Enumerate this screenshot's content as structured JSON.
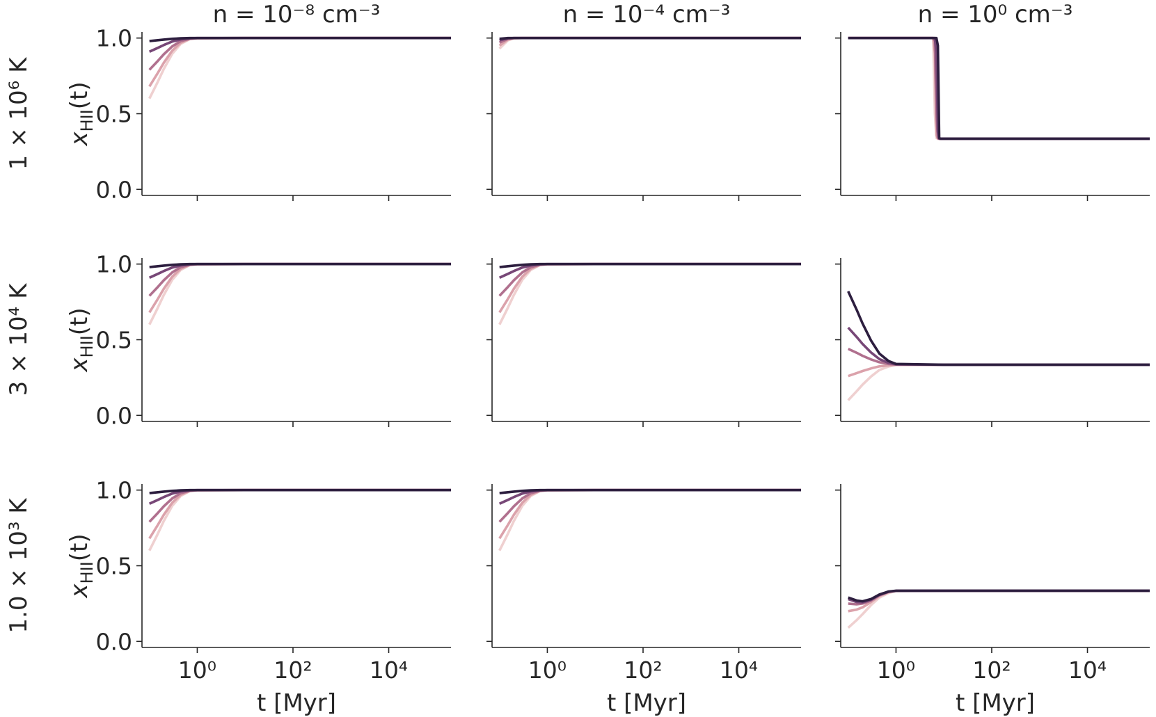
{
  "chart_data": [
    {
      "type": "line",
      "title": "n = 10⁻⁸ cm⁻³",
      "row_label": "1 × 10⁶ K",
      "ylabel": {
        "base": "x",
        "sub": "HII",
        "rest": "(t)"
      },
      "xscale": "log",
      "xlim": [
        0.07,
        200000
      ],
      "ylim": [
        -0.04,
        1.04
      ],
      "xticks": [
        1,
        100,
        10000
      ],
      "yticks": [
        {
          "value": 0,
          "label": "0.0"
        },
        {
          "value": 0.5,
          "label": "0.5"
        },
        {
          "value": 1,
          "label": "1.0"
        }
      ],
      "x": [
        0.1,
        0.15,
        0.2,
        0.3,
        0.45,
        0.7,
        1,
        10,
        200000
      ],
      "series": [
        {
          "color": "#efd0d0",
          "values": [
            0.6,
            0.712,
            0.796,
            0.896,
            0.961,
            0.993,
            0.999,
            1,
            1
          ]
        },
        {
          "color": "#dba2ab",
          "values": [
            0.68,
            0.77,
            0.837,
            0.917,
            0.969,
            0.994,
            0.999,
            1,
            1
          ]
        },
        {
          "color": "#b0708e",
          "values": [
            0.79,
            0.849,
            0.893,
            0.945,
            0.98,
            0.996,
            0.999,
            1,
            1
          ]
        },
        {
          "color": "#774777",
          "values": [
            0.91,
            0.935,
            0.954,
            0.977,
            0.991,
            0.998,
            1,
            1,
            1
          ]
        },
        {
          "color": "#2d1e3f",
          "values": [
            0.98,
            0.986,
            0.99,
            0.995,
            0.998,
            1,
            1,
            1,
            1
          ]
        }
      ]
    },
    {
      "type": "line",
      "title": "n = 10⁻⁴ cm⁻³",
      "xscale": "log",
      "xlim": [
        0.07,
        200000
      ],
      "ylim": [
        -0.04,
        1.04
      ],
      "xticks": [
        1,
        100,
        10000
      ],
      "yticks": [
        0,
        0.5,
        1
      ],
      "x": [
        0.1,
        0.15,
        0.2,
        0.3,
        0.45,
        0.7,
        1,
        10,
        200000
      ],
      "series": [
        {
          "color": "#efd0d0",
          "values": [
            0.93,
            0.985,
            0.998,
            1,
            1,
            1,
            1,
            1,
            1
          ]
        },
        {
          "color": "#dba2ab",
          "values": [
            0.95,
            0.99,
            0.999,
            1,
            1,
            1,
            1,
            1,
            1
          ]
        },
        {
          "color": "#b0708e",
          "values": [
            0.97,
            0.995,
            1,
            1,
            1,
            1,
            1,
            1,
            1
          ]
        },
        {
          "color": "#774777",
          "values": [
            0.985,
            0.998,
            1,
            1,
            1,
            1,
            1,
            1,
            1
          ]
        },
        {
          "color": "#2d1e3f",
          "values": [
            0.995,
            1,
            1,
            1,
            1,
            1,
            1,
            1,
            1
          ]
        }
      ]
    },
    {
      "type": "line",
      "title": "n = 10⁰ cm⁻³",
      "xscale": "log",
      "xlim": [
        0.07,
        200000
      ],
      "ylim": [
        -0.04,
        1.04
      ],
      "xticks": [
        1,
        100,
        10000
      ],
      "yticks": [
        0,
        0.5,
        1
      ],
      "x": [
        0.1,
        1,
        5,
        6,
        6.5,
        7,
        7.5,
        8,
        8.5,
        10,
        100,
        200000
      ],
      "series": [
        {
          "color": "#efd0d0",
          "values": [
            1,
            1,
            1,
            0.999,
            0.5,
            0.34,
            0.335,
            0.335,
            0.335,
            0.335,
            0.335,
            0.335
          ]
        },
        {
          "color": "#dba2ab",
          "values": [
            1,
            1,
            1,
            1,
            0.9,
            0.36,
            0.335,
            0.335,
            0.335,
            0.335,
            0.335,
            0.335
          ]
        },
        {
          "color": "#b0708e",
          "values": [
            1,
            1,
            1,
            1,
            0.98,
            0.5,
            0.34,
            0.335,
            0.335,
            0.335,
            0.335,
            0.335
          ]
        },
        {
          "color": "#774777",
          "values": [
            1,
            1,
            1,
            1,
            1,
            0.9,
            0.38,
            0.335,
            0.335,
            0.335,
            0.335,
            0.335
          ]
        },
        {
          "color": "#2d1e3f",
          "values": [
            1,
            1,
            1,
            1,
            1,
            1,
            0.95,
            0.34,
            0.335,
            0.335,
            0.335,
            0.335
          ]
        }
      ]
    },
    {
      "type": "line",
      "row_label": "3 × 10⁴ K",
      "ylabel": {
        "base": "x",
        "sub": "HII",
        "rest": "(t)"
      },
      "xscale": "log",
      "xlim": [
        0.07,
        200000
      ],
      "ylim": [
        -0.04,
        1.04
      ],
      "xticks": [
        1,
        100,
        10000
      ],
      "yticks": [
        {
          "value": 0,
          "label": "0.0"
        },
        {
          "value": 0.5,
          "label": "0.5"
        },
        {
          "value": 1,
          "label": "1.0"
        }
      ],
      "x": [
        0.1,
        0.15,
        0.2,
        0.3,
        0.45,
        0.7,
        1,
        10,
        200000
      ],
      "series": [
        {
          "color": "#efd0d0",
          "values": [
            0.6,
            0.712,
            0.796,
            0.896,
            0.961,
            0.993,
            0.999,
            1,
            1
          ]
        },
        {
          "color": "#dba2ab",
          "values": [
            0.68,
            0.77,
            0.837,
            0.917,
            0.969,
            0.994,
            0.999,
            1,
            1
          ]
        },
        {
          "color": "#b0708e",
          "values": [
            0.79,
            0.849,
            0.893,
            0.945,
            0.98,
            0.996,
            0.999,
            1,
            1
          ]
        },
        {
          "color": "#774777",
          "values": [
            0.91,
            0.935,
            0.954,
            0.977,
            0.991,
            0.998,
            1,
            1,
            1
          ]
        },
        {
          "color": "#2d1e3f",
          "values": [
            0.98,
            0.986,
            0.99,
            0.995,
            0.998,
            1,
            1,
            1,
            1
          ]
        }
      ]
    },
    {
      "type": "line",
      "xscale": "log",
      "xlim": [
        0.07,
        200000
      ],
      "ylim": [
        -0.04,
        1.04
      ],
      "xticks": [
        1,
        100,
        10000
      ],
      "yticks": [
        0,
        0.5,
        1
      ],
      "x": [
        0.1,
        0.15,
        0.2,
        0.3,
        0.45,
        0.7,
        1,
        10,
        200000
      ],
      "series": [
        {
          "color": "#efd0d0",
          "values": [
            0.6,
            0.712,
            0.796,
            0.896,
            0.961,
            0.993,
            0.999,
            1,
            1
          ]
        },
        {
          "color": "#dba2ab",
          "values": [
            0.68,
            0.77,
            0.837,
            0.917,
            0.969,
            0.994,
            0.999,
            1,
            1
          ]
        },
        {
          "color": "#b0708e",
          "values": [
            0.79,
            0.849,
            0.893,
            0.945,
            0.98,
            0.996,
            0.999,
            1,
            1
          ]
        },
        {
          "color": "#774777",
          "values": [
            0.91,
            0.935,
            0.954,
            0.977,
            0.991,
            0.998,
            1,
            1,
            1
          ]
        },
        {
          "color": "#2d1e3f",
          "values": [
            0.98,
            0.986,
            0.99,
            0.995,
            0.998,
            1,
            1,
            1,
            1
          ]
        }
      ]
    },
    {
      "type": "line",
      "xscale": "log",
      "xlim": [
        0.07,
        200000
      ],
      "ylim": [
        -0.04,
        1.04
      ],
      "xticks": [
        1,
        100,
        10000
      ],
      "yticks": [
        0,
        0.5,
        1
      ],
      "x": [
        0.1,
        0.15,
        0.2,
        0.3,
        0.45,
        0.7,
        1,
        10,
        200000
      ],
      "series": [
        {
          "color": "#efd0d0",
          "values": [
            0.1,
            0.159,
            0.203,
            0.257,
            0.3,
            0.323,
            0.333,
            0.335,
            0.335
          ]
        },
        {
          "color": "#dba2ab",
          "values": [
            0.26,
            0.279,
            0.293,
            0.31,
            0.324,
            0.331,
            0.334,
            0.335,
            0.335
          ]
        },
        {
          "color": "#b0708e",
          "values": [
            0.44,
            0.414,
            0.394,
            0.37,
            0.351,
            0.34,
            0.336,
            0.335,
            0.335
          ]
        },
        {
          "color": "#774777",
          "values": [
            0.58,
            0.519,
            0.472,
            0.416,
            0.372,
            0.347,
            0.337,
            0.335,
            0.335
          ]
        },
        {
          "color": "#2d1e3f",
          "values": [
            0.82,
            0.699,
            0.607,
            0.495,
            0.408,
            0.359,
            0.34,
            0.335,
            0.335
          ]
        }
      ]
    },
    {
      "type": "line",
      "row_label": "1.0 × 10³ K",
      "ylabel": {
        "base": "x",
        "sub": "HII",
        "rest": "(t)"
      },
      "xlabel": "t [Myr]",
      "xscale": "log",
      "xlim": [
        0.07,
        200000
      ],
      "ylim": [
        -0.04,
        1.04
      ],
      "xticks": [
        {
          "value": 1,
          "label": "10⁰"
        },
        {
          "value": 100,
          "label": "10²"
        },
        {
          "value": 10000,
          "label": "10⁴"
        }
      ],
      "yticks": [
        {
          "value": 0,
          "label": "0.0"
        },
        {
          "value": 0.5,
          "label": "0.5"
        },
        {
          "value": 1,
          "label": "1.0"
        }
      ],
      "x": [
        0.1,
        0.15,
        0.2,
        0.3,
        0.45,
        0.7,
        1,
        10,
        200000
      ],
      "series": [
        {
          "color": "#efd0d0",
          "values": [
            0.6,
            0.712,
            0.796,
            0.896,
            0.961,
            0.993,
            0.999,
            1,
            1
          ]
        },
        {
          "color": "#dba2ab",
          "values": [
            0.68,
            0.77,
            0.837,
            0.917,
            0.969,
            0.994,
            0.999,
            1,
            1
          ]
        },
        {
          "color": "#b0708e",
          "values": [
            0.79,
            0.849,
            0.893,
            0.945,
            0.98,
            0.996,
            0.999,
            1,
            1
          ]
        },
        {
          "color": "#774777",
          "values": [
            0.91,
            0.935,
            0.954,
            0.977,
            0.991,
            0.998,
            1,
            1,
            1
          ]
        },
        {
          "color": "#2d1e3f",
          "values": [
            0.98,
            0.986,
            0.99,
            0.995,
            0.998,
            1,
            1,
            1,
            1
          ]
        }
      ]
    },
    {
      "type": "line",
      "xlabel": "t [Myr]",
      "xscale": "log",
      "xlim": [
        0.07,
        200000
      ],
      "ylim": [
        -0.04,
        1.04
      ],
      "xticks": [
        {
          "value": 1,
          "label": "10⁰"
        },
        {
          "value": 100,
          "label": "10²"
        },
        {
          "value": 10000,
          "label": "10⁴"
        }
      ],
      "yticks": [
        0,
        0.5,
        1
      ],
      "x": [
        0.1,
        0.15,
        0.2,
        0.3,
        0.45,
        0.7,
        1,
        10,
        200000
      ],
      "series": [
        {
          "color": "#efd0d0",
          "values": [
            0.6,
            0.712,
            0.796,
            0.896,
            0.961,
            0.993,
            0.999,
            1,
            1
          ]
        },
        {
          "color": "#dba2ab",
          "values": [
            0.68,
            0.77,
            0.837,
            0.917,
            0.969,
            0.994,
            0.999,
            1,
            1
          ]
        },
        {
          "color": "#b0708e",
          "values": [
            0.79,
            0.849,
            0.893,
            0.945,
            0.98,
            0.996,
            0.999,
            1,
            1
          ]
        },
        {
          "color": "#774777",
          "values": [
            0.91,
            0.935,
            0.954,
            0.977,
            0.991,
            0.998,
            1,
            1,
            1
          ]
        },
        {
          "color": "#2d1e3f",
          "values": [
            0.98,
            0.986,
            0.99,
            0.995,
            0.998,
            1,
            1,
            1,
            1
          ]
        }
      ]
    },
    {
      "type": "line",
      "xlabel": "t [Myr]",
      "xscale": "log",
      "xlim": [
        0.07,
        200000
      ],
      "ylim": [
        -0.04,
        1.04
      ],
      "xticks": [
        {
          "value": 1,
          "label": "10⁰"
        },
        {
          "value": 100,
          "label": "10²"
        },
        {
          "value": 10000,
          "label": "10⁴"
        }
      ],
      "yticks": [
        0,
        0.5,
        1
      ],
      "x": [
        0.1,
        0.15,
        0.2,
        0.3,
        0.45,
        0.7,
        1,
        10,
        200000
      ],
      "series": [
        {
          "color": "#efd0d0",
          "values": [
            0.09,
            0.14,
            0.18,
            0.24,
            0.29,
            0.32,
            0.333,
            0.335,
            0.335
          ]
        },
        {
          "color": "#dba2ab",
          "values": [
            0.2,
            0.21,
            0.225,
            0.26,
            0.3,
            0.325,
            0.334,
            0.335,
            0.335
          ]
        },
        {
          "color": "#b0708e",
          "values": [
            0.25,
            0.245,
            0.25,
            0.27,
            0.305,
            0.327,
            0.334,
            0.335,
            0.335
          ]
        },
        {
          "color": "#774777",
          "values": [
            0.28,
            0.26,
            0.258,
            0.275,
            0.307,
            0.328,
            0.334,
            0.335,
            0.335
          ]
        },
        {
          "color": "#2d1e3f",
          "values": [
            0.29,
            0.27,
            0.265,
            0.28,
            0.31,
            0.33,
            0.335,
            0.335,
            0.335
          ]
        }
      ]
    }
  ]
}
